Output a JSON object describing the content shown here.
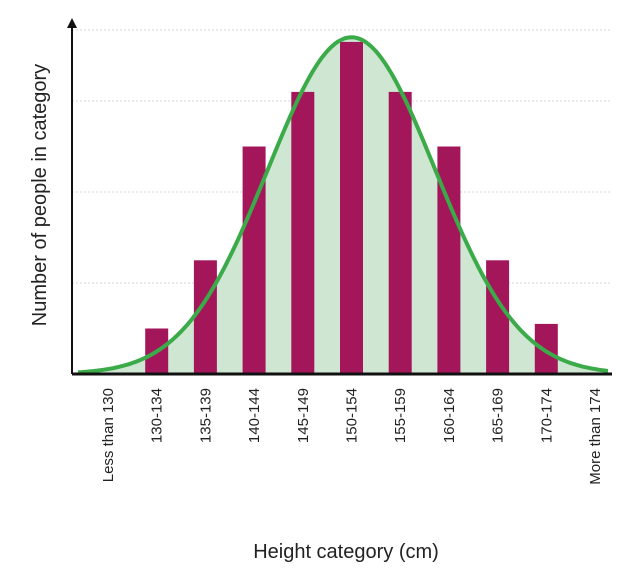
{
  "chart_data": {
    "type": "bar",
    "title": "",
    "xlabel": "Height category (cm)",
    "ylabel": "Number of people in category",
    "categories": [
      "Less than 130",
      "130-134",
      "135-139",
      "140-144",
      "145-149",
      "150-154",
      "155-159",
      "160-164",
      "165-169",
      "170-174",
      "More than 174"
    ],
    "values": [
      0,
      1,
      2.5,
      5,
      6.2,
      7.3,
      6.2,
      5,
      2.5,
      1.1,
      0
    ],
    "ylim": [
      0,
      8
    ],
    "grid": true,
    "curve": {
      "type": "normal",
      "peak": 7.4,
      "mean_index": 5,
      "sigma": 1.72
    },
    "colors": {
      "bar": "#A3165A",
      "curve": "#3BAA48",
      "fill": "#CFE6D2",
      "grid": "#d6d6d6",
      "axis": "#111111"
    }
  }
}
